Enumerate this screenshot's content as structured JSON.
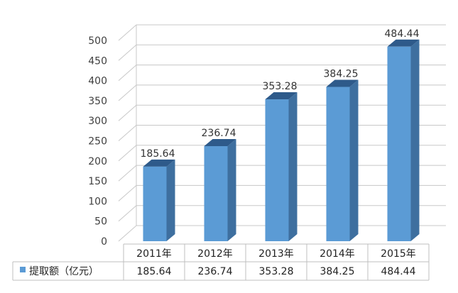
{
  "colors": {
    "bar_front": "#5b9bd5",
    "bar_side": "#3e6f9f",
    "bar_top": "#2e5a8a",
    "grid": "#c8c8c8",
    "table_border": "#bfbfbf"
  },
  "chart_data": {
    "type": "bar",
    "style": "3d-column",
    "title": "",
    "xlabel": "",
    "ylabel": "",
    "ylim": [
      0,
      500
    ],
    "y_ticks": [
      0,
      50,
      100,
      150,
      200,
      250,
      300,
      350,
      400,
      450,
      500
    ],
    "categories": [
      "2011年",
      "2012年",
      "2013年",
      "2014年",
      "2015年"
    ],
    "series": [
      {
        "name": "提取额（亿元）",
        "values": [
          185.64,
          236.74,
          353.28,
          384.25,
          484.44
        ],
        "value_labels": [
          "185.64",
          "236.74",
          "353.28",
          "384.25",
          "484.44"
        ]
      }
    ],
    "grid": true,
    "legend": "data-table-left"
  }
}
